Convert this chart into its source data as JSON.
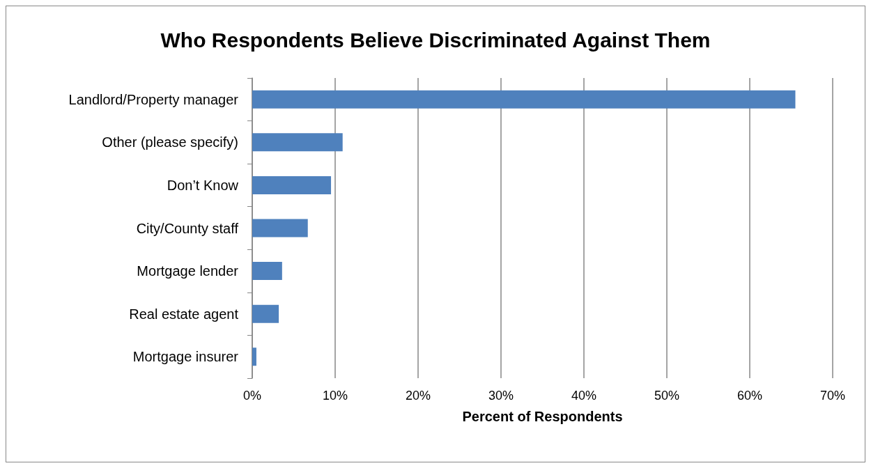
{
  "chart_data": {
    "type": "bar",
    "orientation": "horizontal",
    "title": "Who Respondents Believe Discriminated Against Them",
    "xlabel": "Percent of Respondents",
    "categories": [
      "Landlord/Property manager",
      "Other (please specify)",
      "Don’t Know",
      "City/County staff",
      "Mortgage lender",
      "Real estate agent",
      "Mortgage insurer"
    ],
    "values": [
      65.5,
      10.9,
      9.5,
      6.7,
      3.6,
      3.2,
      0.5
    ],
    "color": "#4f81bd",
    "xlim": [
      0,
      70
    ],
    "xticks": [
      {
        "value": 0,
        "label": "0%"
      },
      {
        "value": 10,
        "label": "10%"
      },
      {
        "value": 20,
        "label": "20%"
      },
      {
        "value": 30,
        "label": "30%"
      },
      {
        "value": 40,
        "label": "40%"
      },
      {
        "value": 50,
        "label": "50%"
      },
      {
        "value": 60,
        "label": "60%"
      },
      {
        "value": 70,
        "label": "70%"
      }
    ],
    "grid": "x"
  }
}
